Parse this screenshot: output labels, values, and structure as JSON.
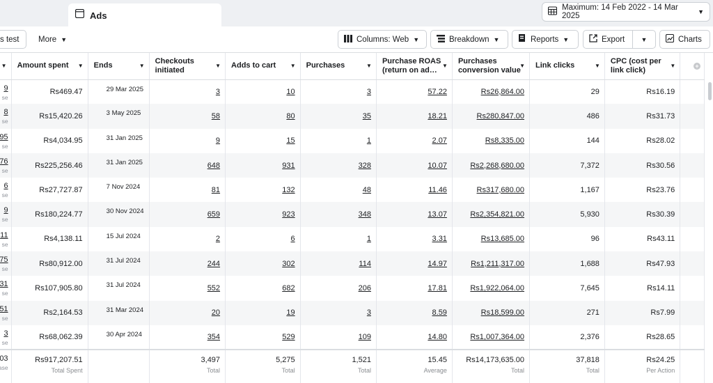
{
  "tabs": {
    "ads_label": "Ads"
  },
  "date_range": {
    "label": "Maximum: 14 Feb 2022 - 14 Mar 2025"
  },
  "toolbar": {
    "ab_test_fragment": "s test",
    "more": "More",
    "columns": "Columns: Web",
    "breakdown": "Breakdown",
    "reports": "Reports",
    "export": "Export",
    "charts": "Charts"
  },
  "columns": {
    "amount_spent": "Amount spent",
    "ends": "Ends",
    "checkouts": "Checkouts initiated",
    "adds_to_cart": "Adds to cart",
    "purchases": "Purchases",
    "roas": "Purchase ROAS (return on ad…",
    "conv_value": "Purchases conversion value",
    "link_clicks": "Link clicks",
    "cpc": "CPC (cost per link click)"
  },
  "rows": [
    {
      "c0": "9",
      "c0s": "se",
      "spent": "Rs469.47",
      "ends": "29 Mar 2025",
      "checkouts": "3",
      "carts": "10",
      "purchases": "3",
      "roas": "57.22",
      "value": "Rs26,864.00",
      "clicks": "29",
      "cpc": "Rs16.19"
    },
    {
      "c0": "8",
      "c0s": "se",
      "spent": "Rs15,420.26",
      "ends": "3 May 2025",
      "checkouts": "58",
      "carts": "80",
      "purchases": "35",
      "roas": "18.21",
      "value": "Rs280,847.00",
      "clicks": "486",
      "cpc": "Rs31.73"
    },
    {
      "c0": "95",
      "c0s": "se",
      "spent": "Rs4,034.95",
      "ends": "31 Jan 2025",
      "checkouts": "9",
      "carts": "15",
      "purchases": "1",
      "roas": "2.07",
      "value": "Rs8,335.00",
      "clicks": "144",
      "cpc": "Rs28.02"
    },
    {
      "c0": "76",
      "c0s": "se",
      "spent": "Rs225,256.46",
      "ends": "31 Jan 2025",
      "checkouts": "648",
      "carts": "931",
      "purchases": "328",
      "roas": "10.07",
      "value": "Rs2,268,680.00",
      "clicks": "7,372",
      "cpc": "Rs30.56"
    },
    {
      "c0": "6",
      "c0s": "se",
      "spent": "Rs27,727.87",
      "ends": "7 Nov 2024",
      "checkouts": "81",
      "carts": "132",
      "purchases": "48",
      "roas": "11.46",
      "value": "Rs317,680.00",
      "clicks": "1,167",
      "cpc": "Rs23.76"
    },
    {
      "c0": "9",
      "c0s": "se",
      "spent": "Rs180,224.77",
      "ends": "30 Nov 2024",
      "checkouts": "659",
      "carts": "923",
      "purchases": "348",
      "roas": "13.07",
      "value": "Rs2,354,821.00",
      "clicks": "5,930",
      "cpc": "Rs30.39"
    },
    {
      "c0": "11",
      "c0s": "se",
      "spent": "Rs4,138.11",
      "ends": "15 Jul 2024",
      "checkouts": "2",
      "carts": "6",
      "purchases": "1",
      "roas": "3.31",
      "value": "Rs13,685.00",
      "clicks": "96",
      "cpc": "Rs43.11"
    },
    {
      "c0": "75",
      "c0s": "se",
      "spent": "Rs80,912.00",
      "ends": "31 Jul 2024",
      "checkouts": "244",
      "carts": "302",
      "purchases": "114",
      "roas": "14.97",
      "value": "Rs1,211,317.00",
      "clicks": "1,688",
      "cpc": "Rs47.93"
    },
    {
      "c0": "31",
      "c0s": "se",
      "spent": "Rs107,905.80",
      "ends": "31 Jul 2024",
      "checkouts": "552",
      "carts": "682",
      "purchases": "206",
      "roas": "17.81",
      "value": "Rs1,922,064.00",
      "clicks": "7,645",
      "cpc": "Rs14.11"
    },
    {
      "c0": "51",
      "c0s": "se",
      "spent": "Rs2,164.53",
      "ends": "31 Mar 2024",
      "checkouts": "20",
      "carts": "19",
      "purchases": "3",
      "roas": "8.59",
      "value": "Rs18,599.00",
      "clicks": "271",
      "cpc": "Rs7.99"
    },
    {
      "c0": "3",
      "c0s": "se",
      "spent": "Rs68,062.39",
      "ends": "30 Apr 2024",
      "checkouts": "354",
      "carts": "529",
      "purchases": "109",
      "roas": "14.80",
      "value": "Rs1,007,364.00",
      "clicks": "2,376",
      "cpc": "Rs28.65"
    }
  ],
  "totals": {
    "c0": "03",
    "c0s": "ase",
    "spent": "Rs917,207.51",
    "spent_label": "Total Spent",
    "checkouts": "3,497",
    "checkouts_label": "Total",
    "carts": "5,275",
    "carts_label": "Total",
    "purchases": "1,521",
    "purchases_label": "Total",
    "roas": "15.45",
    "roas_label": "Average",
    "value": "Rs14,173,635.00",
    "value_label": "Total",
    "clicks": "37,818",
    "clicks_label": "Total",
    "cpc": "Rs24.25",
    "cpc_label": "Per Action"
  }
}
